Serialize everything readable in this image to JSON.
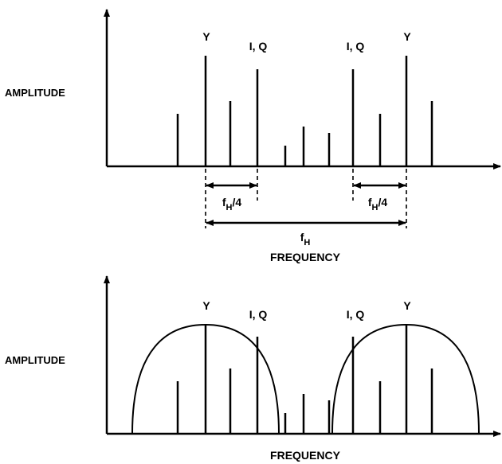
{
  "top_plot": {
    "ylabel": "AMPLITUDE",
    "xlabel": "FREQUENCY",
    "peak_labels": [
      "Y",
      "I, Q",
      "I, Q",
      "Y"
    ],
    "dim_left": {
      "main": "f",
      "sub": "H",
      "suffix": "/4"
    },
    "dim_right": {
      "main": "f",
      "sub": "H",
      "suffix": "/4"
    },
    "dim_full": {
      "main": "f",
      "sub": "H"
    }
  },
  "bottom_plot": {
    "ylabel": "AMPLITUDE",
    "xlabel": "FREQUENCY",
    "peak_labels": [
      "Y",
      "I, Q",
      "I, Q",
      "Y"
    ]
  },
  "colors": {
    "ink": "#000000",
    "background": "#ffffff"
  }
}
